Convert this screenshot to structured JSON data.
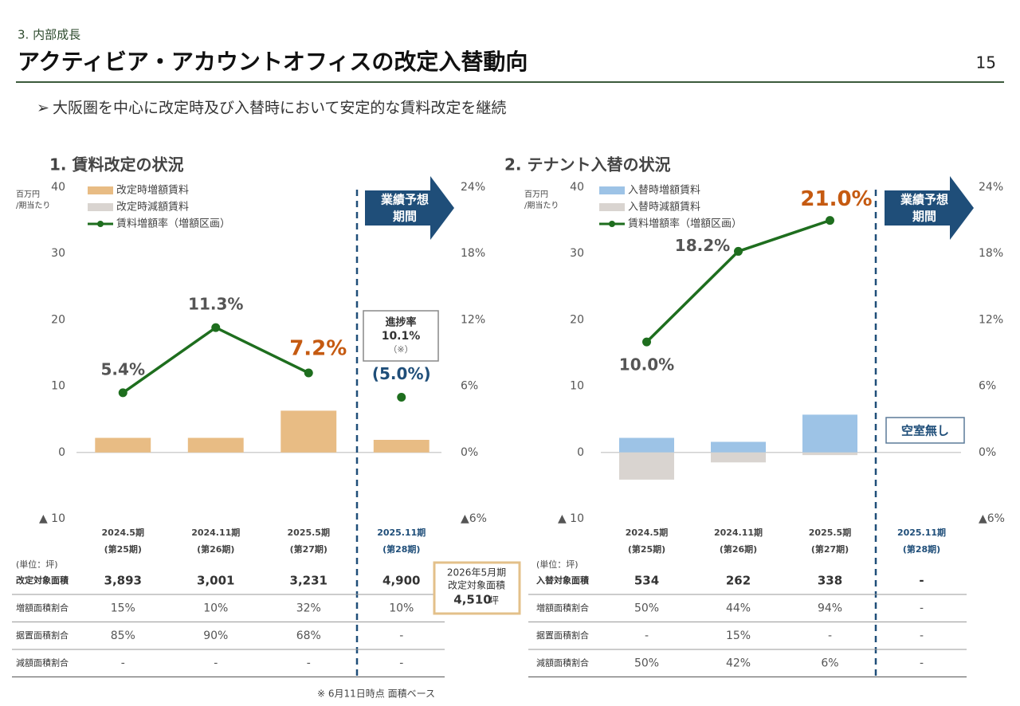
{
  "header": {
    "section": "3. 内部成長",
    "title": "アクティビア・アカウントオフィスの改定入替動向",
    "page": "15",
    "bullet": "大阪圏を中心に改定時及び入替時において安定的な賃料改定を継続"
  },
  "chart_data": [
    {
      "type": "combo",
      "title": "1. 賃料改定の状況",
      "y_label": [
        "百万円",
        "/期当たり"
      ],
      "categories": [
        "2024.5期",
        "2024.11期",
        "2025.5期",
        "2025.11期"
      ],
      "sub_categories": [
        "(第25期)",
        "(第26期)",
        "(第27期)",
        "(第28期)"
      ],
      "category_colors": [
        "#444444",
        "#444444",
        "#444444",
        "#1f4e79"
      ],
      "ylim": [
        -10,
        40
      ],
      "yticks": [
        {
          "value": -10,
          "label": "▲ 10"
        },
        0,
        10,
        20,
        30,
        40
      ],
      "y2lim": [
        -6,
        24
      ],
      "y2ticks": [
        {
          "value": -6,
          "label": "▲6%"
        },
        {
          "value": 0,
          "label": "0%"
        },
        {
          "value": 6,
          "label": "6%"
        },
        {
          "value": 12,
          "label": "12%"
        },
        {
          "value": 18,
          "label": "18%"
        },
        {
          "value": 24,
          "label": "24%"
        }
      ],
      "series": [
        {
          "name": "改定時増額賃料",
          "kind": "bar",
          "color": "#e8bc84",
          "values": [
            2.2,
            2.2,
            6.3,
            1.9
          ]
        },
        {
          "name": "改定時減額賃料",
          "kind": "bar",
          "color": "#d9d4d0",
          "values": [
            0,
            0,
            0,
            0
          ]
        },
        {
          "name": "賃料増額率（増額区画）",
          "kind": "line",
          "axis": "y2",
          "color": "#1e6e1e",
          "values": [
            5.4,
            11.3,
            7.2,
            5.0
          ],
          "value_labels": [
            "5.4%",
            "11.3%",
            "7.2%",
            "(5.0%)"
          ],
          "value_label_colors": [
            "#555555",
            "#555555",
            "#c55a11",
            "#1f4e79"
          ]
        }
      ],
      "forecast_label": [
        "業績予想",
        "期間"
      ],
      "annotation": [
        "進捗率",
        "10.1%",
        "（※）"
      ]
    },
    {
      "type": "combo",
      "title": "2. テナント入替の状況",
      "y_label": [
        "百万円",
        "/期当たり"
      ],
      "categories": [
        "2024.5期",
        "2024.11期",
        "2025.5期",
        "2025.11期"
      ],
      "sub_categories": [
        "(第25期)",
        "(第26期)",
        "(第27期)",
        "(第28期)"
      ],
      "category_colors": [
        "#444444",
        "#444444",
        "#444444",
        "#1f4e79"
      ],
      "ylim": [
        -10,
        40
      ],
      "yticks": [
        {
          "value": -10,
          "label": "▲ 10"
        },
        0,
        10,
        20,
        30,
        40
      ],
      "y2lim": [
        -6,
        24
      ],
      "y2ticks": [
        {
          "value": -6,
          "label": "▲6%"
        },
        {
          "value": 0,
          "label": "0%"
        },
        {
          "value": 6,
          "label": "6%"
        },
        {
          "value": 12,
          "label": "12%"
        },
        {
          "value": 18,
          "label": "18%"
        },
        {
          "value": 24,
          "label": "24%"
        }
      ],
      "series": [
        {
          "name": "入替時増額賃料",
          "kind": "bar",
          "color": "#9dc3e6",
          "values": [
            2.2,
            1.6,
            5.7,
            null
          ]
        },
        {
          "name": "入替時減額賃料",
          "kind": "bar",
          "color": "#d9d4d0",
          "values": [
            -4.1,
            -1.5,
            -0.4,
            null
          ]
        },
        {
          "name": "賃料増額率（増額区画）",
          "kind": "line",
          "axis": "y2",
          "color": "#1e6e1e",
          "values": [
            10.0,
            18.2,
            21.0,
            null
          ],
          "value_labels": [
            "10.0%",
            "18.2%",
            "21.0%",
            null
          ],
          "value_label_colors": [
            "#555555",
            "#555555",
            "#c55a11",
            null
          ]
        }
      ],
      "forecast_label": [
        "業績予想",
        "期間"
      ],
      "annotation": [
        "空室無し"
      ]
    }
  ],
  "tables": [
    {
      "unit": "(単位：坪)",
      "rows": [
        [
          "改定対象面積",
          "3,893",
          "3,001",
          "3,231",
          "4,900"
        ],
        [
          "増額面積割合",
          "15%",
          "10%",
          "32%",
          "10%"
        ],
        [
          "据置面積割合",
          "85%",
          "90%",
          "68%",
          "-"
        ],
        [
          "減額面積割合",
          "-",
          "-",
          "-",
          "-"
        ]
      ],
      "note": [
        "2026年5月期",
        "改定対象面積",
        "4,510",
        "坪"
      ]
    },
    {
      "unit": "(単位：坪)",
      "rows": [
        [
          "入替対象面積",
          "534",
          "262",
          "338",
          "-"
        ],
        [
          "増額面積割合",
          "50%",
          "44%",
          "94%",
          "-"
        ],
        [
          "据置面積割合",
          "-",
          "15%",
          "-",
          "-"
        ],
        [
          "減額面積割合",
          "50%",
          "42%",
          "6%",
          "-"
        ]
      ]
    }
  ],
  "footnote": "※ 6月11日時点 面積ベース"
}
